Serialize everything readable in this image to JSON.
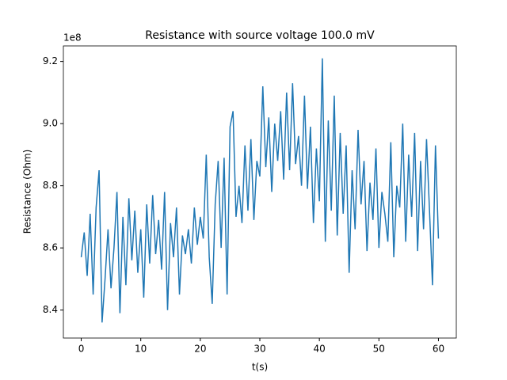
{
  "chart_data": {
    "type": "line",
    "title": "Resistance with source voltage 100.0 mV",
    "x_label": "t(s)",
    "y_label": "Resistance (Ohm)",
    "y_offset_label": "1e8",
    "xlim": [
      -3,
      63
    ],
    "ylim": [
      8.31,
      9.25
    ],
    "xticks": [
      0,
      10,
      20,
      30,
      40,
      50,
      60
    ],
    "yticks": [
      8.4,
      8.6,
      8.8,
      {
        "value": 9,
        "label": "9.0"
      },
      9.2
    ],
    "series": [
      {
        "color": "#1f77b4",
        "x": [
          0,
          0.5,
          1,
          1.5,
          2,
          2.5,
          3,
          3.5,
          4,
          4.5,
          5,
          5.5,
          6,
          6.5,
          7,
          7.5,
          8,
          8.5,
          9,
          9.5,
          10,
          10.5,
          11,
          11.5,
          12,
          12.5,
          13,
          13.5,
          14,
          14.5,
          15,
          15.5,
          16,
          16.5,
          17,
          17.5,
          18,
          18.5,
          19,
          19.5,
          20,
          20.5,
          21,
          21.5,
          22,
          22.5,
          23,
          23.5,
          24,
          24.5,
          25,
          25.5,
          26,
          26.5,
          27,
          27.5,
          28,
          28.5,
          29,
          29.5,
          30,
          30.5,
          31,
          31.5,
          32,
          32.5,
          33,
          33.5,
          34,
          34.5,
          35,
          35.5,
          36,
          36.5,
          37,
          37.5,
          38,
          38.5,
          39,
          39.5,
          40,
          40.5,
          41,
          41.5,
          42,
          42.5,
          43,
          43.5,
          44,
          44.5,
          45,
          45.5,
          46,
          46.5,
          47,
          47.5,
          48,
          48.5,
          49,
          49.5,
          50,
          50.5,
          51,
          51.5,
          52,
          52.5,
          53,
          53.5,
          54,
          54.5,
          55,
          55.5,
          56,
          56.5,
          57,
          57.5,
          58,
          58.5,
          59,
          59.5,
          60
        ],
        "values": [
          8.57,
          8.65,
          8.51,
          8.71,
          8.45,
          8.73,
          8.85,
          8.36,
          8.5,
          8.66,
          8.47,
          8.6,
          8.78,
          8.39,
          8.7,
          8.48,
          8.76,
          8.56,
          8.72,
          8.52,
          8.66,
          8.44,
          8.74,
          8.55,
          8.77,
          8.58,
          8.69,
          8.53,
          8.78,
          8.4,
          8.68,
          8.57,
          8.73,
          8.45,
          8.64,
          8.58,
          8.66,
          8.55,
          8.73,
          8.61,
          8.7,
          8.63,
          8.9,
          8.57,
          8.42,
          8.74,
          8.88,
          8.6,
          8.89,
          8.45,
          8.99,
          9.04,
          8.7,
          8.8,
          8.68,
          8.93,
          8.72,
          8.95,
          8.69,
          8.88,
          8.83,
          9.12,
          8.86,
          9.02,
          8.78,
          9.0,
          8.88,
          9.04,
          8.82,
          9.1,
          8.85,
          9.13,
          8.87,
          8.96,
          8.8,
          9.09,
          8.79,
          8.99,
          8.68,
          8.92,
          8.75,
          9.21,
          8.62,
          9.01,
          8.72,
          9.09,
          8.64,
          8.97,
          8.71,
          8.93,
          8.52,
          8.85,
          8.66,
          8.98,
          8.74,
          8.88,
          8.59,
          8.81,
          8.69,
          8.92,
          8.6,
          8.78,
          8.71,
          8.62,
          8.94,
          8.57,
          8.8,
          8.73,
          9.0,
          8.62,
          8.9,
          8.7,
          8.97,
          8.59,
          8.88,
          8.66,
          8.95,
          8.72,
          8.48,
          8.93,
          8.63
        ]
      }
    ]
  }
}
